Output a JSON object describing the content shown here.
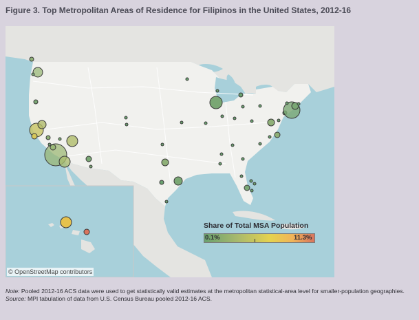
{
  "figure": {
    "title": "Figure 3. Top Metropolitan Areas of Residence for Filipinos in the United States, 2012-16"
  },
  "legend": {
    "title": "Share of Total MSA Population",
    "min_label": "0.1%",
    "max_label": "11.3%",
    "colors": [
      "#6aa16f",
      "#a8b96c",
      "#e6d24e",
      "#f0b458",
      "#d8745d"
    ]
  },
  "attribution": "© OpenStreetMap contributors",
  "notes": {
    "note_label": "Note:",
    "note_text": " Pooled 2012-16 ACS data were used to get statistically valid estimates at the metropolitan statistical-area level for smaller-population geographies.",
    "source_label": "Source:",
    "source_text": " MPI tabulation of data from U.S. Census Bureau pooled 2012-16 ACS."
  },
  "colors": {
    "background": "#d8d3de",
    "water": "#a8d0da",
    "land_us": "#f1f1ee",
    "land_other": "#e4e4e1",
    "circle_outline": "#3a3a3a"
  }
}
